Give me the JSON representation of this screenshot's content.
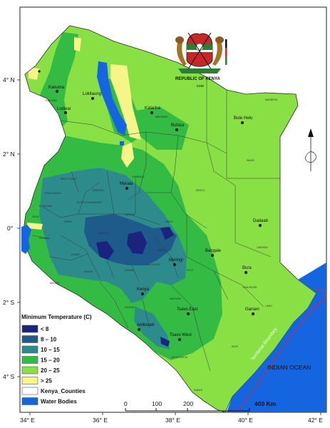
{
  "emblem": {
    "title": "REPUBLIC OF KENYA",
    "subtitle": "KMD"
  },
  "axes": {
    "lon_ticks": [
      "34° E",
      "36° E",
      "38° E",
      "40° E",
      "42° E"
    ],
    "lat_ticks": [
      "4° N",
      "2° N",
      "0°",
      "2° S",
      "4° S"
    ]
  },
  "legend": {
    "title": "Minimum Temperature (C)",
    "items": [
      {
        "label": "< 8",
        "color": "#1a237e"
      },
      {
        "label": "8 – 10",
        "color": "#1e5a8a"
      },
      {
        "label": "10 – 15",
        "color": "#2e8b8b"
      },
      {
        "label": "15 – 20",
        "color": "#33bb44"
      },
      {
        "label": "20 – 25",
        "color": "#88e044"
      },
      {
        "label": "> 25",
        "color": "#f5f58a"
      },
      {
        "label": "Kenya_Counties",
        "color": "#ffffff"
      },
      {
        "label": "Water Bodies",
        "color": "#1565e0"
      }
    ]
  },
  "scale_bar": {
    "labels": [
      "0",
      "100",
      "200",
      "400 Km"
    ]
  },
  "labels": {
    "ocean": "INDIAN OCEAN",
    "boundary": "Territorial Boundary"
  },
  "cities": [
    {
      "name": "Lokitaung"
    },
    {
      "name": "Kakuma"
    },
    {
      "name": "Lodwar"
    },
    {
      "name": "Kalacha"
    },
    {
      "name": "Bubisa"
    },
    {
      "name": "Bute Helu"
    },
    {
      "name": "Marala"
    },
    {
      "name": "Dadaab"
    },
    {
      "name": "Meringi"
    },
    {
      "name": "Bangale"
    },
    {
      "name": "Bura"
    },
    {
      "name": "Kenya"
    },
    {
      "name": "Tsavo East"
    },
    {
      "name": "Garsen"
    },
    {
      "name": "Amboseli"
    },
    {
      "name": "Tsavo West"
    }
  ],
  "county_labels": [
    "TURKANA",
    "MARSABIT",
    "MANDERA",
    "WAJIR",
    "SAMBURU",
    "ISIOLO",
    "GARISSA",
    "TANA RIVER",
    "LAMU",
    "KILIFI",
    "KWALE",
    "TAITA/TAVETA",
    "KAJIADO",
    "NAROK",
    "MIGORI",
    "MERU",
    "KITUI",
    "MACHAKOS",
    "NAKURU",
    "BARINGO",
    "LAIKIPIA",
    "ELGEYO MARAKWET",
    "WEST POKOT",
    "TRANS NZOIA",
    "NANDI",
    "BOMET",
    "SIAYA",
    "EMBU",
    "KIAMBU",
    "MAKUENI",
    "BUNGOMA",
    "KISUMU",
    "NYERI"
  ]
}
